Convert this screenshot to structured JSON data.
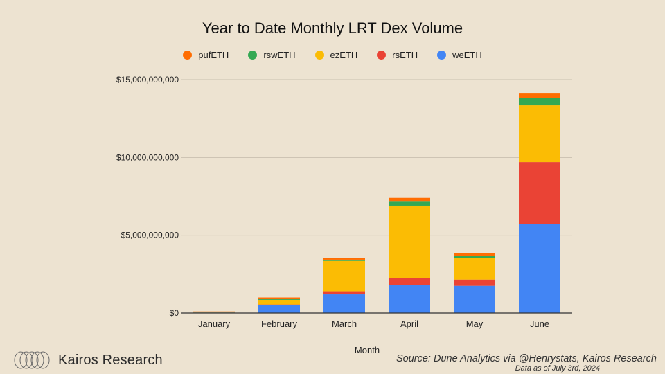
{
  "chart_data": {
    "type": "bar",
    "stacked": true,
    "title": "Year to Date Monthly LRT Dex Volume",
    "xlabel": "Month",
    "ylabel": "",
    "ylim": [
      0,
      15000000000
    ],
    "yticks": [
      0,
      5000000000,
      10000000000,
      15000000000
    ],
    "ytick_labels": [
      "$0",
      "$5,000,000,000",
      "$10,000,000,000",
      "$15,000,000,000"
    ],
    "grid": true,
    "legend_position": "top",
    "categories": [
      "January",
      "February",
      "March",
      "April",
      "May",
      "June"
    ],
    "series": [
      {
        "name": "weETH",
        "color": "#4285f4",
        "values": [
          40000000,
          500000000,
          1200000000,
          1800000000,
          1750000000,
          5700000000
        ]
      },
      {
        "name": "rsETH",
        "color": "#ea4335",
        "values": [
          0,
          50000000,
          200000000,
          450000000,
          400000000,
          4000000000
        ]
      },
      {
        "name": "ezETH",
        "color": "#fbbc04",
        "values": [
          30000000,
          300000000,
          1950000000,
          4650000000,
          1400000000,
          3650000000
        ]
      },
      {
        "name": "rswETH",
        "color": "#34a853",
        "values": [
          20000000,
          70000000,
          80000000,
          300000000,
          130000000,
          450000000
        ]
      },
      {
        "name": "pufETH",
        "color": "#ff6d01",
        "values": [
          10000000,
          80000000,
          100000000,
          200000000,
          170000000,
          350000000
        ]
      }
    ],
    "legend_order": [
      "pufETH",
      "rswETH",
      "ezETH",
      "rsETH",
      "weETH"
    ]
  },
  "footer": {
    "brand": "Kairos Research",
    "source": "Source: Dune Analytics via @Henrystats, Kairos Research",
    "as_of": "Data as of July 3rd, 2024"
  },
  "colors": {
    "background": "#ede3d1",
    "gridline": "#c9c0b0",
    "axis": "#333333"
  }
}
